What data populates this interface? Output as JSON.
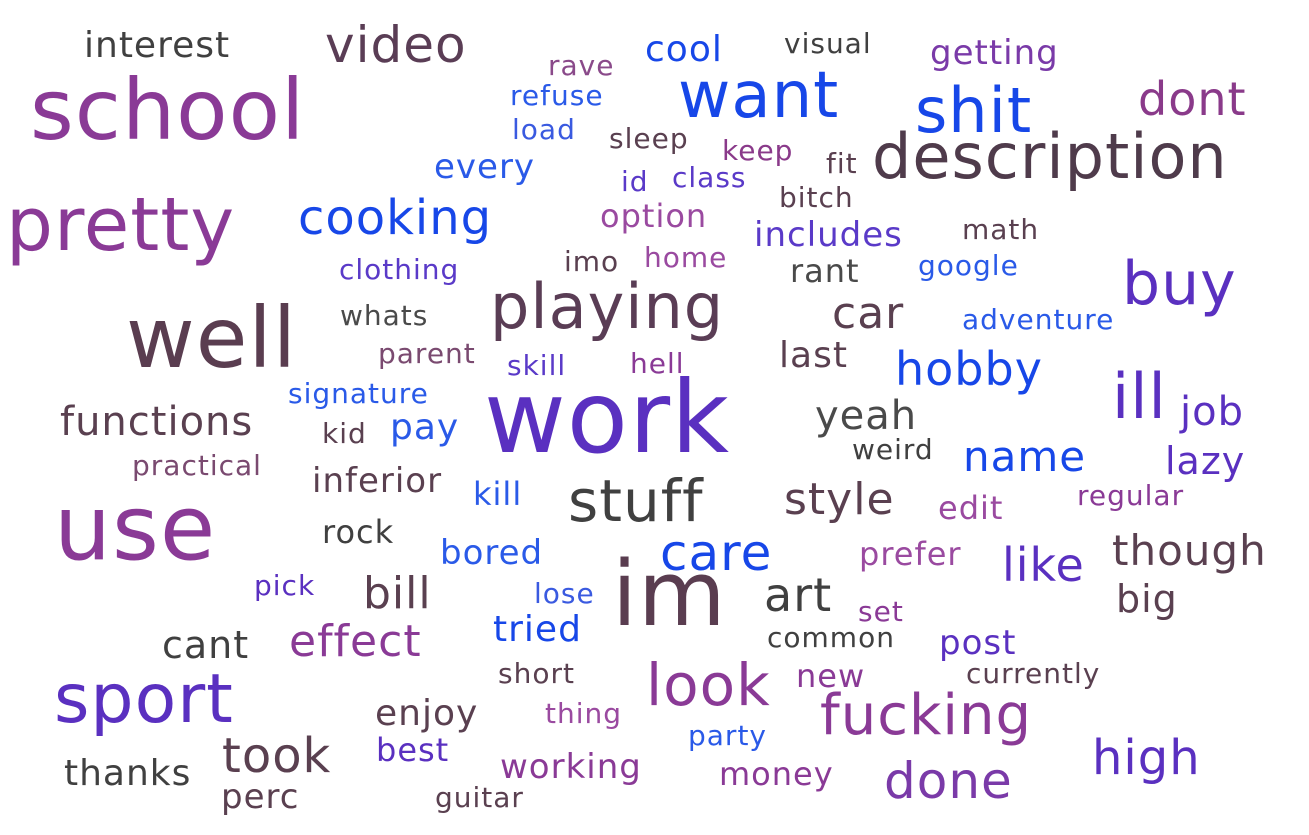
{
  "words": [
    {
      "text": "interest",
      "color": "#404040"
    },
    {
      "text": "video",
      "color": "#5a3d55"
    },
    {
      "text": "rave",
      "color": "#8a4a8a"
    },
    {
      "text": "cool",
      "color": "#1747e8"
    },
    {
      "text": "visual",
      "color": "#404040"
    },
    {
      "text": "getting",
      "color": "#7a3aa8"
    },
    {
      "text": "school",
      "color": "#8a3a96"
    },
    {
      "text": "refuse",
      "color": "#2a5ae8"
    },
    {
      "text": "want",
      "color": "#1747e8"
    },
    {
      "text": "shit",
      "color": "#1747e8"
    },
    {
      "text": "dont",
      "color": "#8a3a8a"
    },
    {
      "text": "load",
      "color": "#3a5ae0"
    },
    {
      "text": "sleep",
      "color": "#5a4050"
    },
    {
      "text": "keep",
      "color": "#8a3a8a"
    },
    {
      "text": "description",
      "color": "#4f3b4b"
    },
    {
      "text": "every",
      "color": "#2a5ae8"
    },
    {
      "text": "id",
      "color": "#5a3ac8"
    },
    {
      "text": "class",
      "color": "#5a3ac8"
    },
    {
      "text": "fit",
      "color": "#5a4050"
    },
    {
      "text": "bitch",
      "color": "#5a4050"
    },
    {
      "text": "pretty",
      "color": "#8a3a96"
    },
    {
      "text": "cooking",
      "color": "#1747e8"
    },
    {
      "text": "option",
      "color": "#9a4aa0"
    },
    {
      "text": "includes",
      "color": "#5a3ac8"
    },
    {
      "text": "math",
      "color": "#5a4050"
    },
    {
      "text": "clothing",
      "color": "#5a3ac8"
    },
    {
      "text": "imo",
      "color": "#5a4050"
    },
    {
      "text": "home",
      "color": "#9a4aa0"
    },
    {
      "text": "rant",
      "color": "#4a4a4a"
    },
    {
      "text": "google",
      "color": "#2a5ae8"
    },
    {
      "text": "buy",
      "color": "#5a30c0"
    },
    {
      "text": "well",
      "color": "#5a3d50"
    },
    {
      "text": "whats",
      "color": "#4a4a4a"
    },
    {
      "text": "playing",
      "color": "#5a3d55"
    },
    {
      "text": "car",
      "color": "#5a4050"
    },
    {
      "text": "adventure",
      "color": "#2a5ae8"
    },
    {
      "text": "parent",
      "color": "#7a4a70"
    },
    {
      "text": "skill",
      "color": "#5a3ac8"
    },
    {
      "text": "hell",
      "color": "#8a3a96"
    },
    {
      "text": "last",
      "color": "#5a4050"
    },
    {
      "text": "hobby",
      "color": "#1747e8"
    },
    {
      "text": "signature",
      "color": "#2a5ae8"
    },
    {
      "text": "ill",
      "color": "#5a30c0"
    },
    {
      "text": "job",
      "color": "#5a30c0"
    },
    {
      "text": "functions",
      "color": "#5a4050"
    },
    {
      "text": "work",
      "color": "#5a30c0"
    },
    {
      "text": "yeah",
      "color": "#4a4a4a"
    },
    {
      "text": "kid",
      "color": "#5a4050"
    },
    {
      "text": "pay",
      "color": "#2a5ae8"
    },
    {
      "text": "name",
      "color": "#1747e8"
    },
    {
      "text": "weird",
      "color": "#404040"
    },
    {
      "text": "practical",
      "color": "#7a4a70"
    },
    {
      "text": "inferior",
      "color": "#5a4050"
    },
    {
      "text": "lazy",
      "color": "#5a30c0"
    },
    {
      "text": "kill",
      "color": "#2a5ae8"
    },
    {
      "text": "stuff",
      "color": "#404040"
    },
    {
      "text": "style",
      "color": "#5a4050"
    },
    {
      "text": "regular",
      "color": "#8a3a96"
    },
    {
      "text": "use",
      "color": "#8a3a96"
    },
    {
      "text": "edit",
      "color": "#9a4aa0"
    },
    {
      "text": "rock",
      "color": "#404040"
    },
    {
      "text": "care",
      "color": "#1747e8"
    },
    {
      "text": "though",
      "color": "#5a4050"
    },
    {
      "text": "bored",
      "color": "#2a5ae8"
    },
    {
      "text": "prefer",
      "color": "#9a4aa0"
    },
    {
      "text": "like",
      "color": "#5a30c0"
    },
    {
      "text": "im",
      "color": "#5a3d50"
    },
    {
      "text": "pick",
      "color": "#5a30c0"
    },
    {
      "text": "bill",
      "color": "#5a4050"
    },
    {
      "text": "lose",
      "color": "#3a5ae0"
    },
    {
      "text": "art",
      "color": "#404040"
    },
    {
      "text": "big",
      "color": "#5a4050"
    },
    {
      "text": "set",
      "color": "#8a3a96"
    },
    {
      "text": "cant",
      "color": "#404040"
    },
    {
      "text": "effect",
      "color": "#8a3a96"
    },
    {
      "text": "tried",
      "color": "#1747e8"
    },
    {
      "text": "common",
      "color": "#404040"
    },
    {
      "text": "post",
      "color": "#5a30c0"
    },
    {
      "text": "sport",
      "color": "#5a30c0"
    },
    {
      "text": "short",
      "color": "#5a4050"
    },
    {
      "text": "look",
      "color": "#8a3a96"
    },
    {
      "text": "new",
      "color": "#8a3a96"
    },
    {
      "text": "currently",
      "color": "#5a4050"
    },
    {
      "text": "enjoy",
      "color": "#5a4050"
    },
    {
      "text": "thing",
      "color": "#9a4aa0"
    },
    {
      "text": "fucking",
      "color": "#8a3a96"
    },
    {
      "text": "took",
      "color": "#5a4050"
    },
    {
      "text": "best",
      "color": "#5a30c0"
    },
    {
      "text": "party",
      "color": "#2a5ae8"
    },
    {
      "text": "high",
      "color": "#5a30c0"
    },
    {
      "text": "thanks",
      "color": "#404040"
    },
    {
      "text": "working",
      "color": "#8a3a96"
    },
    {
      "text": "money",
      "color": "#8a3a96"
    },
    {
      "text": "done",
      "color": "#7a3aa8"
    },
    {
      "text": "perc",
      "color": "#5a4050"
    },
    {
      "text": "guitar",
      "color": "#5a4050"
    }
  ]
}
